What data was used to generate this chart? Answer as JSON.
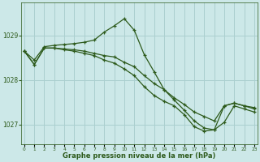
{
  "title": "Graphe pression niveau de la mer (hPa)",
  "background_color": "#cce8e8",
  "grid_color": "#aacfcf",
  "line_color": "#2d5a1b",
  "xlim": [
    -0.3,
    23.3
  ],
  "ylim": [
    1026.55,
    1029.75
  ],
  "yticks": [
    1027,
    1028,
    1029
  ],
  "xticks": [
    0,
    1,
    2,
    3,
    4,
    5,
    6,
    7,
    8,
    9,
    10,
    11,
    12,
    13,
    14,
    15,
    16,
    17,
    18,
    19,
    20,
    21,
    22,
    23
  ],
  "series1_x": [
    0,
    1,
    2,
    3,
    4,
    5,
    6,
    7,
    8,
    9,
    10,
    11,
    12,
    13,
    14,
    15,
    16,
    17,
    18,
    19,
    20,
    21,
    22,
    23
  ],
  "series1_y": [
    1028.65,
    1028.45,
    1028.75,
    1028.78,
    1028.8,
    1028.82,
    1028.85,
    1028.9,
    1029.08,
    1029.22,
    1029.38,
    1029.12,
    1028.57,
    1028.18,
    1027.78,
    1027.55,
    1027.32,
    1027.08,
    1026.92,
    1026.88,
    1027.42,
    1027.48,
    1027.42,
    1027.38
  ],
  "series2_x": [
    0,
    1,
    2,
    3,
    4,
    5,
    6,
    7,
    8,
    9,
    10,
    11,
    12,
    13,
    14,
    15,
    16,
    17,
    18,
    19,
    20,
    21,
    22,
    23
  ],
  "series2_y": [
    1028.65,
    1028.35,
    1028.72,
    1028.72,
    1028.7,
    1028.68,
    1028.65,
    1028.6,
    1028.55,
    1028.52,
    1028.4,
    1028.3,
    1028.1,
    1027.92,
    1027.78,
    1027.6,
    1027.45,
    1027.28,
    1027.18,
    1027.08,
    1027.42,
    1027.48,
    1027.42,
    1027.35
  ],
  "series3_x": [
    0,
    1,
    2,
    3,
    4,
    5,
    6,
    7,
    8,
    9,
    10,
    11,
    12,
    13,
    14,
    15,
    16,
    17,
    18,
    19,
    20,
    21,
    22,
    23
  ],
  "series3_y": [
    1028.65,
    1028.35,
    1028.72,
    1028.72,
    1028.68,
    1028.65,
    1028.6,
    1028.55,
    1028.45,
    1028.38,
    1028.25,
    1028.1,
    1027.85,
    1027.65,
    1027.52,
    1027.42,
    1027.22,
    1026.95,
    1026.85,
    1026.88,
    1027.05,
    1027.42,
    1027.35,
    1027.28
  ]
}
